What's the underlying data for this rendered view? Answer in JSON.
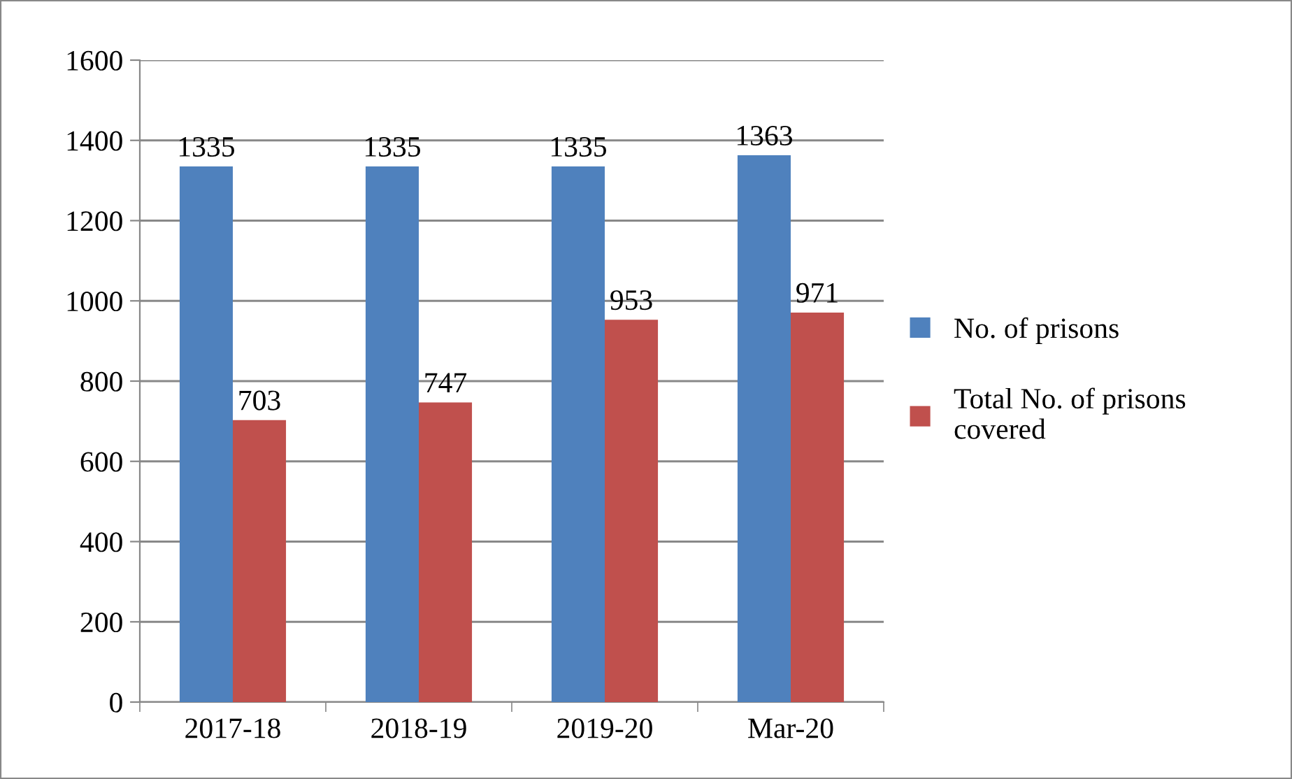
{
  "chart_data": {
    "type": "bar",
    "categories": [
      "2017-18",
      "2018-19",
      "2019-20",
      "Mar-20"
    ],
    "series": [
      {
        "name": "No. of prisons",
        "color": "#4f81bd",
        "values": [
          1335,
          1335,
          1335,
          1363
        ]
      },
      {
        "name": "Total No. of prisons\ncovered",
        "color": "#c0504d",
        "values": [
          703,
          747,
          953,
          971
        ]
      }
    ],
    "ylim": [
      0,
      1600
    ],
    "yticks": [
      0,
      200,
      400,
      600,
      800,
      1000,
      1200,
      1400,
      1600
    ],
    "grid": "y",
    "legend": "right",
    "data_labels": true
  }
}
